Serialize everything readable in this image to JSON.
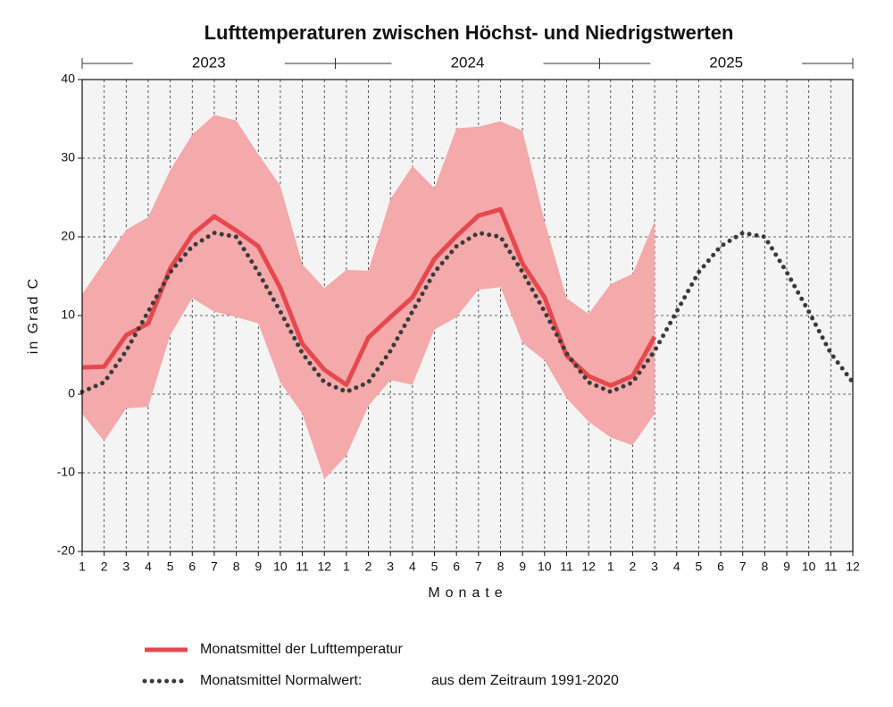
{
  "chart_data": {
    "type": "line",
    "title": "Lufttemperaturen zwischen Höchst- und Niedrigstwerten",
    "years": [
      "2023",
      "2024",
      "2025"
    ],
    "categories": [
      "1",
      "2",
      "3",
      "4",
      "5",
      "6",
      "7",
      "8",
      "9",
      "10",
      "11",
      "12",
      "1",
      "2",
      "3",
      "4",
      "5",
      "6",
      "7",
      "8",
      "9",
      "10",
      "11",
      "12",
      "1",
      "2",
      "3",
      "4",
      "5",
      "6",
      "7",
      "8",
      "9",
      "10",
      "11",
      "12"
    ],
    "x_label": "Monate",
    "y_label": "in Grad C",
    "ylim": [
      -20,
      40
    ],
    "yticks": [
      -20,
      -10,
      0,
      10,
      20,
      30,
      40
    ],
    "grid": true,
    "band": {
      "color": "#f4a9ab",
      "high": [
        12.7,
        16.8,
        20.9,
        22.5,
        28.5,
        33,
        35.5,
        34.8,
        30.5,
        26.5,
        16.5,
        13.5,
        15.8,
        15.7,
        24.8,
        29,
        26.2,
        33.8,
        34,
        34.7,
        33.5,
        22,
        12.2,
        10.2,
        14,
        15.3,
        22,
        null,
        null,
        null,
        null,
        null,
        null,
        null,
        null,
        null
      ],
      "low": [
        -2.5,
        -6,
        -1.8,
        -1.6,
        7.5,
        12.2,
        10.5,
        9.8,
        9,
        1.5,
        -2.5,
        -10.8,
        -7.8,
        -1.5,
        1.8,
        1.2,
        8.2,
        9.8,
        13.3,
        13.6,
        6.5,
        4.3,
        -0.5,
        -3.5,
        -5.5,
        -6.5,
        -2.5,
        null,
        null,
        null,
        null,
        null,
        null,
        null,
        null,
        null
      ]
    },
    "series": [
      {
        "name": "Monatsmittel der Lufttemperatur",
        "color": "#e5484d",
        "style": "solid",
        "values": [
          3.4,
          3.5,
          7.5,
          9,
          16,
          20.3,
          22.6,
          20.8,
          18.8,
          13.5,
          6.4,
          3.1,
          1.2,
          7.2,
          9.8,
          12.3,
          17.2,
          20.1,
          22.7,
          23.5,
          16.6,
          12.3,
          4.9,
          2.3,
          1.1,
          2.3,
          7.3,
          null,
          null,
          null,
          null,
          null,
          null,
          null,
          null,
          null
        ]
      },
      {
        "name": "Monatsmittel Normalwert:",
        "color": "#3a3a3a",
        "style": "dotted",
        "values": [
          0.3,
          1.5,
          5.5,
          10.5,
          15.5,
          18.8,
          20.5,
          20,
          15.5,
          10.5,
          5.2,
          1.5,
          0.3,
          1.5,
          5.5,
          10.5,
          15.5,
          18.8,
          20.5,
          20,
          15.5,
          10.5,
          5.2,
          1.5,
          0.3,
          1.5,
          5.5,
          10.5,
          15.5,
          18.8,
          20.5,
          20,
          15.5,
          10.5,
          5.2,
          1.5
        ]
      }
    ],
    "legend_note": "aus dem Zeitraum 1991-2020"
  }
}
